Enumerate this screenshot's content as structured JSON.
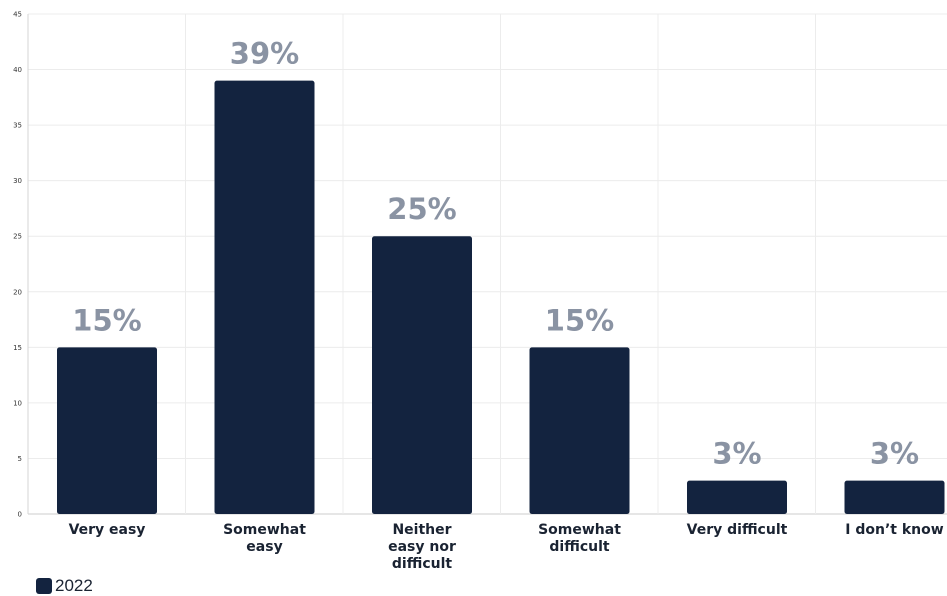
{
  "chart_data": {
    "type": "bar",
    "categories": [
      [
        "Very easy"
      ],
      [
        "Somewhat",
        "easy"
      ],
      [
        "Neither",
        "easy nor",
        "difficult"
      ],
      [
        "Somewhat",
        "difficult"
      ],
      [
        "Very difficult"
      ],
      [
        "I don’t know"
      ]
    ],
    "series": [
      {
        "name": "2022",
        "values": [
          15,
          39,
          25,
          15,
          3,
          3
        ],
        "labels": [
          "15%",
          "39%",
          "25%",
          "15%",
          "3%",
          "3%"
        ]
      }
    ],
    "ylim": [
      0,
      45
    ],
    "yticks": [
      0,
      5,
      10,
      15,
      20,
      25,
      30,
      35,
      40,
      45
    ],
    "grid": true,
    "legend_position": "bottom-left",
    "colors": {
      "bar": "#13233f",
      "grid": "#ececec",
      "label": "#8a93a3",
      "category": "#1a2332"
    }
  }
}
